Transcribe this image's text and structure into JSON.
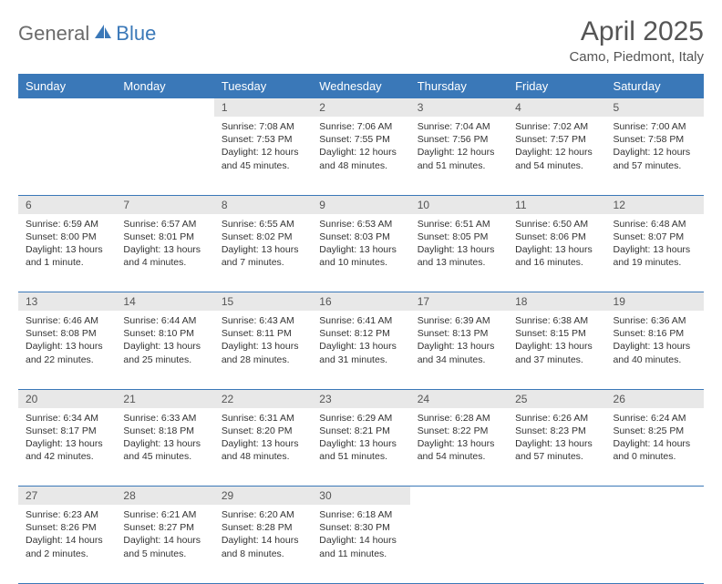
{
  "logo": {
    "general": "General",
    "blue": "Blue"
  },
  "title": "April 2025",
  "location": "Camo, Piedmont, Italy",
  "accent_color": "#3a78b8",
  "daynum_bg": "#e8e8e8",
  "weekdays": [
    "Sunday",
    "Monday",
    "Tuesday",
    "Wednesday",
    "Thursday",
    "Friday",
    "Saturday"
  ],
  "weeks": [
    [
      null,
      null,
      {
        "n": "1",
        "sr": "7:08 AM",
        "ss": "7:53 PM",
        "dl": "12 hours and 45 minutes."
      },
      {
        "n": "2",
        "sr": "7:06 AM",
        "ss": "7:55 PM",
        "dl": "12 hours and 48 minutes."
      },
      {
        "n": "3",
        "sr": "7:04 AM",
        "ss": "7:56 PM",
        "dl": "12 hours and 51 minutes."
      },
      {
        "n": "4",
        "sr": "7:02 AM",
        "ss": "7:57 PM",
        "dl": "12 hours and 54 minutes."
      },
      {
        "n": "5",
        "sr": "7:00 AM",
        "ss": "7:58 PM",
        "dl": "12 hours and 57 minutes."
      }
    ],
    [
      {
        "n": "6",
        "sr": "6:59 AM",
        "ss": "8:00 PM",
        "dl": "13 hours and 1 minute."
      },
      {
        "n": "7",
        "sr": "6:57 AM",
        "ss": "8:01 PM",
        "dl": "13 hours and 4 minutes."
      },
      {
        "n": "8",
        "sr": "6:55 AM",
        "ss": "8:02 PM",
        "dl": "13 hours and 7 minutes."
      },
      {
        "n": "9",
        "sr": "6:53 AM",
        "ss": "8:03 PM",
        "dl": "13 hours and 10 minutes."
      },
      {
        "n": "10",
        "sr": "6:51 AM",
        "ss": "8:05 PM",
        "dl": "13 hours and 13 minutes."
      },
      {
        "n": "11",
        "sr": "6:50 AM",
        "ss": "8:06 PM",
        "dl": "13 hours and 16 minutes."
      },
      {
        "n": "12",
        "sr": "6:48 AM",
        "ss": "8:07 PM",
        "dl": "13 hours and 19 minutes."
      }
    ],
    [
      {
        "n": "13",
        "sr": "6:46 AM",
        "ss": "8:08 PM",
        "dl": "13 hours and 22 minutes."
      },
      {
        "n": "14",
        "sr": "6:44 AM",
        "ss": "8:10 PM",
        "dl": "13 hours and 25 minutes."
      },
      {
        "n": "15",
        "sr": "6:43 AM",
        "ss": "8:11 PM",
        "dl": "13 hours and 28 minutes."
      },
      {
        "n": "16",
        "sr": "6:41 AM",
        "ss": "8:12 PM",
        "dl": "13 hours and 31 minutes."
      },
      {
        "n": "17",
        "sr": "6:39 AM",
        "ss": "8:13 PM",
        "dl": "13 hours and 34 minutes."
      },
      {
        "n": "18",
        "sr": "6:38 AM",
        "ss": "8:15 PM",
        "dl": "13 hours and 37 minutes."
      },
      {
        "n": "19",
        "sr": "6:36 AM",
        "ss": "8:16 PM",
        "dl": "13 hours and 40 minutes."
      }
    ],
    [
      {
        "n": "20",
        "sr": "6:34 AM",
        "ss": "8:17 PM",
        "dl": "13 hours and 42 minutes."
      },
      {
        "n": "21",
        "sr": "6:33 AM",
        "ss": "8:18 PM",
        "dl": "13 hours and 45 minutes."
      },
      {
        "n": "22",
        "sr": "6:31 AM",
        "ss": "8:20 PM",
        "dl": "13 hours and 48 minutes."
      },
      {
        "n": "23",
        "sr": "6:29 AM",
        "ss": "8:21 PM",
        "dl": "13 hours and 51 minutes."
      },
      {
        "n": "24",
        "sr": "6:28 AM",
        "ss": "8:22 PM",
        "dl": "13 hours and 54 minutes."
      },
      {
        "n": "25",
        "sr": "6:26 AM",
        "ss": "8:23 PM",
        "dl": "13 hours and 57 minutes."
      },
      {
        "n": "26",
        "sr": "6:24 AM",
        "ss": "8:25 PM",
        "dl": "14 hours and 0 minutes."
      }
    ],
    [
      {
        "n": "27",
        "sr": "6:23 AM",
        "ss": "8:26 PM",
        "dl": "14 hours and 2 minutes."
      },
      {
        "n": "28",
        "sr": "6:21 AM",
        "ss": "8:27 PM",
        "dl": "14 hours and 5 minutes."
      },
      {
        "n": "29",
        "sr": "6:20 AM",
        "ss": "8:28 PM",
        "dl": "14 hours and 8 minutes."
      },
      {
        "n": "30",
        "sr": "6:18 AM",
        "ss": "8:30 PM",
        "dl": "14 hours and 11 minutes."
      },
      null,
      null,
      null
    ]
  ],
  "labels": {
    "sunrise": "Sunrise: ",
    "sunset": "Sunset: ",
    "daylight": "Daylight: "
  }
}
